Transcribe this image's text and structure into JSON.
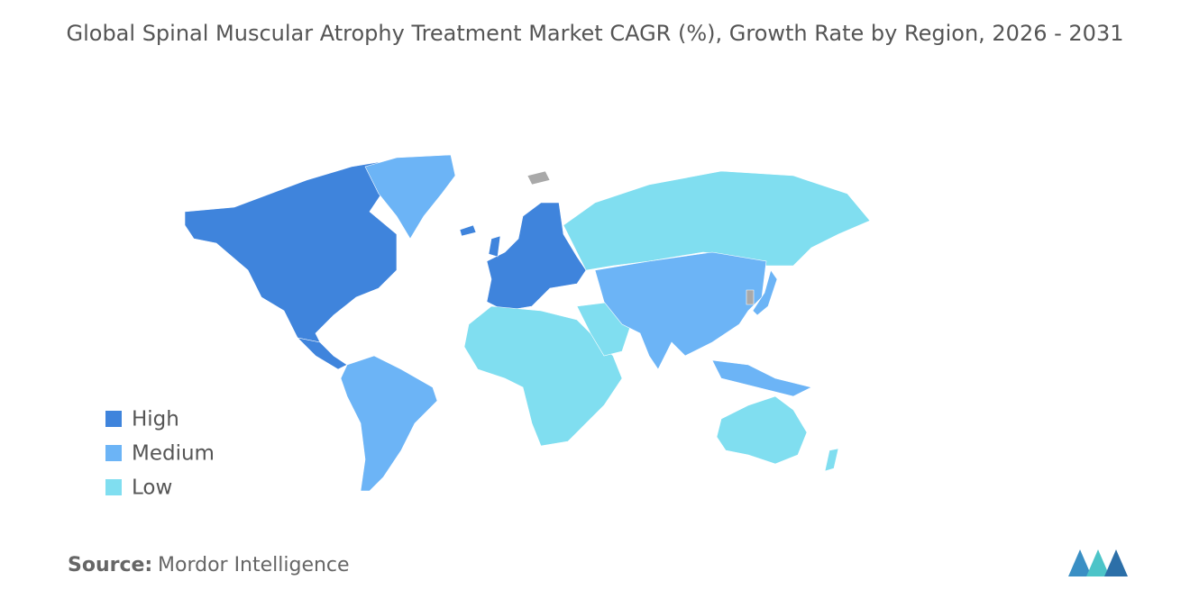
{
  "title": "Global Spinal Muscular Atrophy Treatment Market CAGR (%), Growth Rate by Region, 2026 - 2031",
  "legend": [
    {
      "label": "High",
      "color": "#3f84dc"
    },
    {
      "label": "Medium",
      "color": "#6cb4f6"
    },
    {
      "label": "Low",
      "color": "#80def0"
    }
  ],
  "source": {
    "label": "Source:",
    "text": "Mordor Intelligence"
  }
}
